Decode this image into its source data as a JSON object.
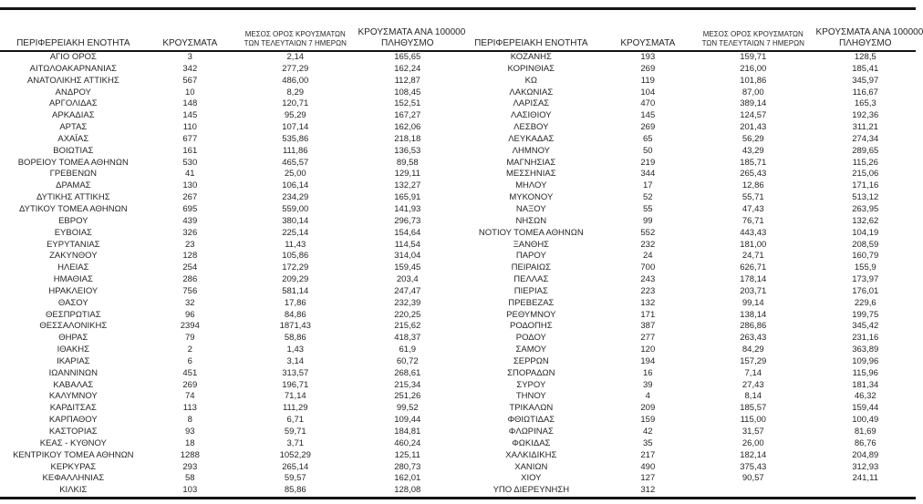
{
  "page": {
    "background_color": "#ffffff",
    "text_color": "#262626",
    "rule_color": "#141414"
  },
  "table": {
    "headers": {
      "region": "ΠΕΡΙΦΕΡΕΙΑΚΗ ΕΝΟΤΗΤΑ",
      "cases": "ΚΡΟΥΣΜΑΤΑ",
      "avg7_line1": "ΜΕΣΟΣ ΟΡΟΣ ΚΡΟΥΣΜΑΤΩΝ",
      "avg7_line2": "ΤΩΝ ΤΕΛΕΥΤΑΙΩΝ 7 ΗΜΕΡΩΝ",
      "per100k_line1": "ΚΡΟΥΣΜΑΤΑ ΑΝΑ 100000",
      "per100k_line2": "ΠΛΗΘΥΣΜΟ"
    },
    "cell_names": [
      "region-cell",
      "cases-cell",
      "avg7-cell",
      "per100k-cell"
    ],
    "left_rows": [
      [
        "ΑΓΙΟ ΟΡΟΣ",
        "3",
        "2,14",
        "165,65"
      ],
      [
        "ΑΙΤΩΛΟΑΚΑΡΝΑΝΙΑΣ",
        "342",
        "277,29",
        "162,24"
      ],
      [
        "ΑΝΑΤΟΛΙΚΗΣ ΑΤΤΙΚΗΣ",
        "567",
        "486,00",
        "112,87"
      ],
      [
        "ΑΝΔΡΟΥ",
        "10",
        "8,29",
        "108,45"
      ],
      [
        "ΑΡΓΟΛΙΔΑΣ",
        "148",
        "120,71",
        "152,51"
      ],
      [
        "ΑΡΚΑΔΙΑΣ",
        "145",
        "95,29",
        "167,27"
      ],
      [
        "ΑΡΤΑΣ",
        "110",
        "107,14",
        "162,06"
      ],
      [
        "ΑΧΑΪΑΣ",
        "677",
        "535,86",
        "218,18"
      ],
      [
        "ΒΟΙΩΤΙΑΣ",
        "161",
        "111,86",
        "136,53"
      ],
      [
        "ΒΟΡΕΙΟΥ ΤΟΜΕΑ ΑΘΗΝΩΝ",
        "530",
        "465,57",
        "89,58"
      ],
      [
        "ΓΡΕΒΕΝΩΝ",
        "41",
        "25,00",
        "129,11"
      ],
      [
        "ΔΡΑΜΑΣ",
        "130",
        "106,14",
        "132,27"
      ],
      [
        "ΔΥΤΙΚΗΣ ΑΤΤΙΚΗΣ",
        "267",
        "234,29",
        "165,91"
      ],
      [
        "ΔΥΤΙΚΟΥ ΤΟΜΕΑ ΑΘΗΝΩΝ",
        "695",
        "559,00",
        "141,93"
      ],
      [
        "ΕΒΡΟΥ",
        "439",
        "380,14",
        "296,73"
      ],
      [
        "ΕΥΒΟΙΑΣ",
        "326",
        "225,14",
        "154,64"
      ],
      [
        "ΕΥΡΥΤΑΝΙΑΣ",
        "23",
        "11,43",
        "114,54"
      ],
      [
        "ΖΑΚΥΝΘΟΥ",
        "128",
        "105,86",
        "314,04"
      ],
      [
        "ΗΛΕΙΑΣ",
        "254",
        "172,29",
        "159,45"
      ],
      [
        "ΗΜΑΘΙΑΣ",
        "286",
        "209,29",
        "203,4"
      ],
      [
        "ΗΡΑΚΛΕΙΟΥ",
        "756",
        "581,14",
        "247,47"
      ],
      [
        "ΘΑΣΟΥ",
        "32",
        "17,86",
        "232,39"
      ],
      [
        "ΘΕΣΠΡΩΤΙΑΣ",
        "96",
        "84,86",
        "220,25"
      ],
      [
        "ΘΕΣΣΑΛΟΝΙΚΗΣ",
        "2394",
        "1871,43",
        "215,62"
      ],
      [
        "ΘΗΡΑΣ",
        "79",
        "58,86",
        "418,37"
      ],
      [
        "ΙΘΑΚΗΣ",
        "2",
        "1,43",
        "61,9"
      ],
      [
        "ΙΚΑΡΙΑΣ",
        "6",
        "3,14",
        "60,72"
      ],
      [
        "ΙΩΑΝΝΙΝΩΝ",
        "451",
        "313,57",
        "268,61"
      ],
      [
        "ΚΑΒΑΛΑΣ",
        "269",
        "196,71",
        "215,34"
      ],
      [
        "ΚΑΛΥΜΝΟΥ",
        "74",
        "71,14",
        "251,26"
      ],
      [
        "ΚΑΡΔΙΤΣΑΣ",
        "113",
        "111,29",
        "99,52"
      ],
      [
        "ΚΑΡΠΑΘΟΥ",
        "8",
        "6,71",
        "109,44"
      ],
      [
        "ΚΑΣΤΟΡΙΑΣ",
        "93",
        "59,71",
        "184,81"
      ],
      [
        "ΚΕΑΣ - ΚΥΘΝΟΥ",
        "18",
        "3,71",
        "460,24"
      ],
      [
        "ΚΕΝΤΡΙΚΟΥ ΤΟΜΕΑ ΑΘΗΝΩΝ",
        "1288",
        "1052,29",
        "125,11"
      ],
      [
        "ΚΕΡΚΥΡΑΣ",
        "293",
        "265,14",
        "280,73"
      ],
      [
        "ΚΕΦΑΛΛΗΝΙΑΣ",
        "58",
        "59,57",
        "162,01"
      ],
      [
        "ΚΙΛΚΙΣ",
        "103",
        "85,86",
        "128,08"
      ]
    ],
    "right_rows": [
      [
        "ΚΟΖΑΝΗΣ",
        "193",
        "159,71",
        "128,5"
      ],
      [
        "ΚΟΡΙΝΘΙΑΣ",
        "269",
        "216,00",
        "185,41"
      ],
      [
        "ΚΩ",
        "119",
        "101,86",
        "345,97"
      ],
      [
        "ΛΑΚΩΝΙΑΣ",
        "104",
        "87,00",
        "116,67"
      ],
      [
        "ΛΑΡΙΣΑΣ",
        "470",
        "389,14",
        "165,3"
      ],
      [
        "ΛΑΣΙΘΙΟΥ",
        "145",
        "124,57",
        "192,36"
      ],
      [
        "ΛΕΣΒΟΥ",
        "269",
        "201,43",
        "311,21"
      ],
      [
        "ΛΕΥΚΑΔΑΣ",
        "65",
        "56,29",
        "274,34"
      ],
      [
        "ΛΗΜΝΟΥ",
        "50",
        "43,29",
        "289,65"
      ],
      [
        "ΜΑΓΝΗΣΙΑΣ",
        "219",
        "185,71",
        "115,26"
      ],
      [
        "ΜΕΣΣΗΝΙΑΣ",
        "344",
        "265,43",
        "215,06"
      ],
      [
        "ΜΗΛΟΥ",
        "17",
        "12,86",
        "171,16"
      ],
      [
        "ΜΥΚΟΝΟΥ",
        "52",
        "55,71",
        "513,12"
      ],
      [
        "ΝΑΞΟΥ",
        "55",
        "47,43",
        "263,95"
      ],
      [
        "ΝΗΣΩΝ",
        "99",
        "76,71",
        "132,62"
      ],
      [
        "ΝΟΤΙΟΥ ΤΟΜΕΑ ΑΘΗΝΩΝ",
        "552",
        "443,43",
        "104,19"
      ],
      [
        "ΞΑΝΘΗΣ",
        "232",
        "181,00",
        "208,59"
      ],
      [
        "ΠΑΡΟΥ",
        "24",
        "24,71",
        "160,79"
      ],
      [
        "ΠΕΙΡΑΙΩΣ",
        "700",
        "626,71",
        "155,9"
      ],
      [
        "ΠΕΛΛΑΣ",
        "243",
        "178,14",
        "173,97"
      ],
      [
        "ΠΙΕΡΙΑΣ",
        "223",
        "203,71",
        "176,01"
      ],
      [
        "ΠΡΕΒΕΖΑΣ",
        "132",
        "99,14",
        "229,6"
      ],
      [
        "ΡΕΘΥΜΝΟΥ",
        "171",
        "138,14",
        "199,75"
      ],
      [
        "ΡΟΔΟΠΗΣ",
        "387",
        "286,86",
        "345,42"
      ],
      [
        "ΡΟΔΟΥ",
        "277",
        "263,43",
        "231,16"
      ],
      [
        "ΣΑΜΟΥ",
        "120",
        "84,29",
        "363,89"
      ],
      [
        "ΣΕΡΡΩΝ",
        "194",
        "157,29",
        "109,96"
      ],
      [
        "ΣΠΟΡΑΔΩΝ",
        "16",
        "7,14",
        "115,96"
      ],
      [
        "ΣΥΡΟΥ",
        "39",
        "27,43",
        "181,34"
      ],
      [
        "ΤΗΝΟΥ",
        "4",
        "8,14",
        "46,32"
      ],
      [
        "ΤΡΙΚΑΛΩΝ",
        "209",
        "185,57",
        "159,44"
      ],
      [
        "ΦΘΙΩΤΙΔΑΣ",
        "159",
        "115,00",
        "100,49"
      ],
      [
        "ΦΛΩΡΙΝΑΣ",
        "42",
        "31,57",
        "81,69"
      ],
      [
        "ΦΩΚΙΔΑΣ",
        "35",
        "26,00",
        "86,76"
      ],
      [
        "ΧΑΛΚΙΔΙΚΗΣ",
        "217",
        "182,14",
        "204,89"
      ],
      [
        "ΧΑΝΙΩΝ",
        "490",
        "375,43",
        "312,93"
      ],
      [
        "ΧΙΟΥ",
        "127",
        "90,57",
        "241,11"
      ],
      [
        "ΥΠΟ ΔΙΕΡΕΥΝΗΣΗ",
        "312",
        "",
        ""
      ]
    ]
  }
}
